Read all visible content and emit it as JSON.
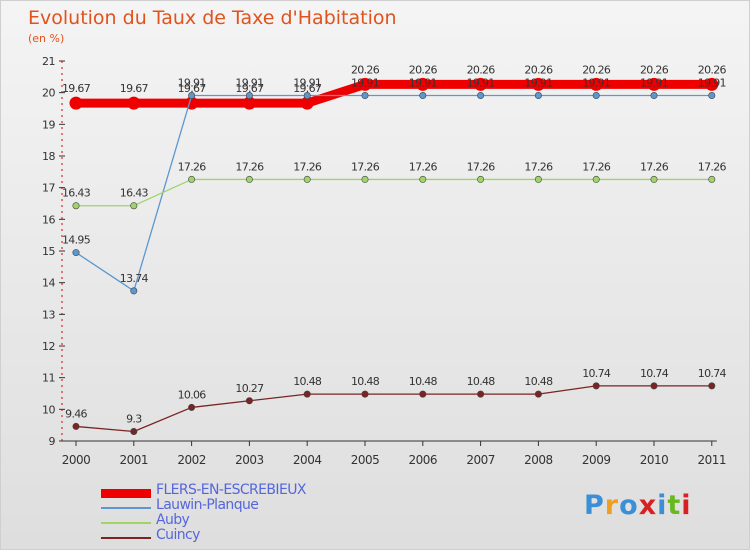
{
  "title": "Evolution du Taux de Taxe d'Habitation",
  "unit": "(en %)",
  "logo": "Proxiti",
  "chart_data": {
    "type": "line",
    "title": "Evolution du Taux de Taxe d'Habitation",
    "ylabel": "(en %)",
    "xlabel": "",
    "categories": [
      "2000",
      "2001",
      "2002",
      "2003",
      "2004",
      "2005",
      "2006",
      "2007",
      "2008",
      "2009",
      "2010",
      "2011"
    ],
    "ylim": [
      9,
      21
    ],
    "yticks": [
      9,
      10,
      11,
      12,
      13,
      14,
      15,
      16,
      17,
      18,
      19,
      20,
      21
    ],
    "grid": false,
    "legend": "bottom-left",
    "series": [
      {
        "name": "FLERS-EN-ESCREBIEUX",
        "color": "#ee0000",
        "thick": true,
        "values": [
          19.67,
          19.67,
          19.67,
          19.67,
          19.67,
          20.26,
          20.26,
          20.26,
          20.26,
          20.26,
          20.26,
          20.26
        ],
        "labels": [
          "19.67",
          "19.67",
          "19.67",
          "19.67",
          "19.67",
          "20.26",
          "20.26",
          "20.26",
          "20.26",
          "20.26",
          "20.26",
          "20.26"
        ]
      },
      {
        "name": "Lauwin-Planque",
        "color": "#5b97d0",
        "thick": false,
        "values": [
          14.95,
          13.74,
          19.91,
          19.91,
          19.91,
          19.91,
          19.91,
          19.91,
          19.91,
          19.91,
          19.91,
          19.91
        ],
        "labels": [
          "14.95",
          "13.74",
          "19.91",
          "19.91",
          "19.91",
          "19.91",
          "19.91",
          "19.91",
          "19.91",
          "19.91",
          "19.91",
          "19.91"
        ]
      },
      {
        "name": "Auby",
        "color": "#9fd468",
        "thick": false,
        "values": [
          16.43,
          16.43,
          17.26,
          17.26,
          17.26,
          17.26,
          17.26,
          17.26,
          17.26,
          17.26,
          17.26,
          17.26
        ],
        "labels": [
          "16.43",
          "16.43",
          "17.26",
          "17.26",
          "17.26",
          "17.26",
          "17.26",
          "17.26",
          "17.26",
          "17.26",
          "17.26",
          "17.26"
        ]
      },
      {
        "name": "Cuincy",
        "color": "#7a2424",
        "thick": false,
        "values": [
          9.46,
          9.3,
          10.06,
          10.27,
          10.48,
          10.48,
          10.48,
          10.48,
          10.48,
          10.74,
          10.74,
          10.74
        ],
        "labels": [
          "9.46",
          "9.3",
          "10.06",
          "10.27",
          "10.48",
          "10.48",
          "10.48",
          "10.48",
          "10.48",
          "10.74",
          "10.74",
          "10.74"
        ]
      }
    ]
  }
}
